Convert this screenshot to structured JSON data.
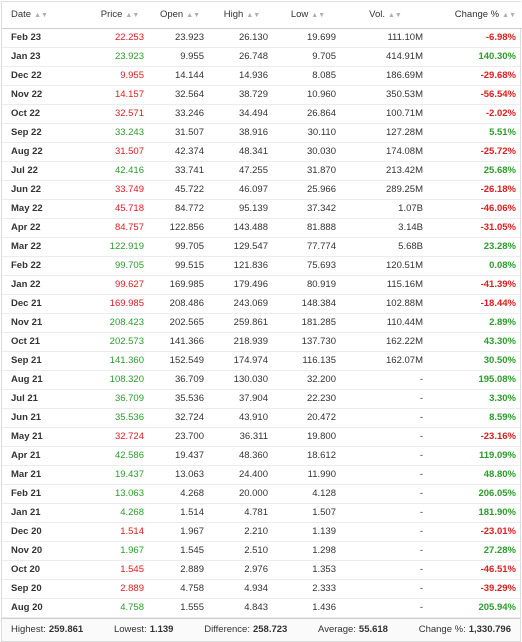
{
  "table": {
    "columns": [
      {
        "label": "Date",
        "sort_icon": "sort-icon"
      },
      {
        "label": "Price",
        "sort_icon": "sort-icon"
      },
      {
        "label": "Open",
        "sort_icon": "sort-icon"
      },
      {
        "label": "High",
        "sort_icon": "sort-icon"
      },
      {
        "label": "Low",
        "sort_icon": "sort-icon"
      },
      {
        "label": "Vol.",
        "sort_icon": "sort-icon"
      },
      {
        "label": "Change %",
        "sort_icon": "sort-icon"
      }
    ],
    "rows": [
      {
        "date": "Feb 23",
        "price": "22.253",
        "open": "23.923",
        "high": "26.130",
        "low": "19.699",
        "vol": "111.10M",
        "change": "-6.98%",
        "dir": "down"
      },
      {
        "date": "Jan 23",
        "price": "23.923",
        "open": "9.955",
        "high": "26.748",
        "low": "9.705",
        "vol": "414.91M",
        "change": "140.30%",
        "dir": "up"
      },
      {
        "date": "Dec 22",
        "price": "9.955",
        "open": "14.144",
        "high": "14.936",
        "low": "8.085",
        "vol": "186.69M",
        "change": "-29.68%",
        "dir": "down"
      },
      {
        "date": "Nov 22",
        "price": "14.157",
        "open": "32.564",
        "high": "38.729",
        "low": "10.960",
        "vol": "350.53M",
        "change": "-56.54%",
        "dir": "down"
      },
      {
        "date": "Oct 22",
        "price": "32.571",
        "open": "33.246",
        "high": "34.494",
        "low": "26.864",
        "vol": "100.71M",
        "change": "-2.02%",
        "dir": "down"
      },
      {
        "date": "Sep 22",
        "price": "33.243",
        "open": "31.507",
        "high": "38.916",
        "low": "30.110",
        "vol": "127.28M",
        "change": "5.51%",
        "dir": "up"
      },
      {
        "date": "Aug 22",
        "price": "31.507",
        "open": "42.374",
        "high": "48.341",
        "low": "30.030",
        "vol": "174.08M",
        "change": "-25.72%",
        "dir": "down"
      },
      {
        "date": "Jul 22",
        "price": "42.416",
        "open": "33.741",
        "high": "47.255",
        "low": "31.870",
        "vol": "213.42M",
        "change": "25.68%",
        "dir": "up"
      },
      {
        "date": "Jun 22",
        "price": "33.749",
        "open": "45.722",
        "high": "46.097",
        "low": "25.966",
        "vol": "289.25M",
        "change": "-26.18%",
        "dir": "down"
      },
      {
        "date": "May 22",
        "price": "45.718",
        "open": "84.772",
        "high": "95.139",
        "low": "37.342",
        "vol": "1.07B",
        "change": "-46.06%",
        "dir": "down"
      },
      {
        "date": "Apr 22",
        "price": "84.757",
        "open": "122.856",
        "high": "143.488",
        "low": "81.888",
        "vol": "3.14B",
        "change": "-31.05%",
        "dir": "down"
      },
      {
        "date": "Mar 22",
        "price": "122.919",
        "open": "99.705",
        "high": "129.547",
        "low": "77.774",
        "vol": "5.68B",
        "change": "23.28%",
        "dir": "up"
      },
      {
        "date": "Feb 22",
        "price": "99.705",
        "open": "99.515",
        "high": "121.836",
        "low": "75.693",
        "vol": "120.51M",
        "change": "0.08%",
        "dir": "up"
      },
      {
        "date": "Jan 22",
        "price": "99.627",
        "open": "169.985",
        "high": "179.496",
        "low": "80.919",
        "vol": "115.16M",
        "change": "-41.39%",
        "dir": "down"
      },
      {
        "date": "Dec 21",
        "price": "169.985",
        "open": "208.486",
        "high": "243.069",
        "low": "148.384",
        "vol": "102.88M",
        "change": "-18.44%",
        "dir": "down"
      },
      {
        "date": "Nov 21",
        "price": "208.423",
        "open": "202.565",
        "high": "259.861",
        "low": "181.285",
        "vol": "110.44M",
        "change": "2.89%",
        "dir": "up"
      },
      {
        "date": "Oct 21",
        "price": "202.573",
        "open": "141.366",
        "high": "218.939",
        "low": "137.730",
        "vol": "162.22M",
        "change": "43.30%",
        "dir": "up"
      },
      {
        "date": "Sep 21",
        "price": "141.360",
        "open": "152.549",
        "high": "174.974",
        "low": "116.135",
        "vol": "162.07M",
        "change": "30.50%",
        "dir": "up"
      },
      {
        "date": "Aug 21",
        "price": "108.320",
        "open": "36.709",
        "high": "130.030",
        "low": "32.200",
        "vol": "-",
        "change": "195.08%",
        "dir": "up"
      },
      {
        "date": "Jul 21",
        "price": "36.709",
        "open": "35.536",
        "high": "37.904",
        "low": "22.230",
        "vol": "-",
        "change": "3.30%",
        "dir": "up"
      },
      {
        "date": "Jun 21",
        "price": "35.536",
        "open": "32.724",
        "high": "43.910",
        "low": "20.472",
        "vol": "-",
        "change": "8.59%",
        "dir": "up"
      },
      {
        "date": "May 21",
        "price": "32.724",
        "open": "23.700",
        "high": "36.311",
        "low": "19.800",
        "vol": "-",
        "change": "-23.16%",
        "dir": "down"
      },
      {
        "date": "Apr 21",
        "price": "42.586",
        "open": "19.437",
        "high": "48.360",
        "low": "18.612",
        "vol": "-",
        "change": "119.09%",
        "dir": "up"
      },
      {
        "date": "Mar 21",
        "price": "19.437",
        "open": "13.063",
        "high": "24.400",
        "low": "11.990",
        "vol": "-",
        "change": "48.80%",
        "dir": "up"
      },
      {
        "date": "Feb 21",
        "price": "13.063",
        "open": "4.268",
        "high": "20.000",
        "low": "4.128",
        "vol": "-",
        "change": "206.05%",
        "dir": "up"
      },
      {
        "date": "Jan 21",
        "price": "4.268",
        "open": "1.514",
        "high": "4.781",
        "low": "1.507",
        "vol": "-",
        "change": "181.90%",
        "dir": "up"
      },
      {
        "date": "Dec 20",
        "price": "1.514",
        "open": "1.967",
        "high": "2.210",
        "low": "1.139",
        "vol": "-",
        "change": "-23.01%",
        "dir": "down"
      },
      {
        "date": "Nov 20",
        "price": "1.967",
        "open": "1.545",
        "high": "2.510",
        "low": "1.298",
        "vol": "-",
        "change": "27.28%",
        "dir": "up"
      },
      {
        "date": "Oct 20",
        "price": "1.545",
        "open": "2.889",
        "high": "2.976",
        "low": "1.353",
        "vol": "-",
        "change": "-46.51%",
        "dir": "down"
      },
      {
        "date": "Sep 20",
        "price": "2.889",
        "open": "4.758",
        "high": "4.934",
        "low": "2.333",
        "vol": "-",
        "change": "-39.29%",
        "dir": "down"
      },
      {
        "date": "Aug 20",
        "price": "4.758",
        "open": "1.555",
        "high": "4.843",
        "low": "1.436",
        "vol": "-",
        "change": "205.94%",
        "dir": "up"
      }
    ]
  },
  "summary": {
    "highest_label": "Highest:",
    "highest_value": "259.861",
    "lowest_label": "Lowest:",
    "lowest_value": "1.139",
    "difference_label": "Difference:",
    "difference_value": "258.723",
    "average_label": "Average:",
    "average_value": "55.618",
    "change_label": "Change %:",
    "change_value": "1,330.796"
  },
  "colors": {
    "up": "#2a9d2a",
    "down": "#e01c1c"
  }
}
